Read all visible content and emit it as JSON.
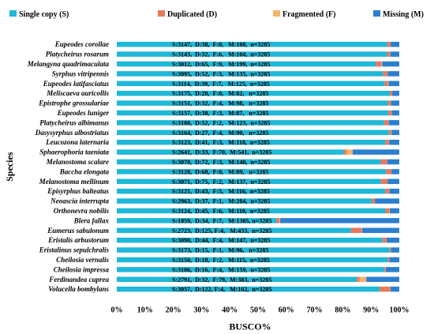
{
  "chart_data": {
    "type": "bar",
    "orientation": "horizontal",
    "stacked": true,
    "ylabel": "Species",
    "xlabel": "BUSCO%",
    "xlim": [
      0,
      100
    ],
    "x_ticks": [
      "0%",
      "10%",
      "20%",
      "30%",
      "40%",
      "50%",
      "60%",
      "70%",
      "80%",
      "90%",
      "100%"
    ],
    "legend_position": "top",
    "series": [
      {
        "name": "Single  copy (S)",
        "color": "#1fb8d8"
      },
      {
        "name": "Duplicated (D)",
        "color": "#e8795a"
      },
      {
        "name": "Fragmented (F)",
        "color": "#f6b26b"
      },
      {
        "name": "Missing (M)",
        "color": "#2a7fcf"
      }
    ],
    "categories": [
      "Eupeodes corollae",
      "Platycheirus rosarum",
      "Melangyna quadrimaculata",
      "Syrphus vitripennis",
      "Eupeodes latifasciatus",
      "Meliscaeva auricollis",
      "Epistrophe grossulariae",
      "Eupeodes luniger",
      "Platycheirus albimanus",
      "Dasysyrphus albostriatus",
      "Leucozona laternaria",
      "Sphaerophoria taeniata",
      "Melanostoma scalare",
      "Baccha elongata",
      "Melanostoma mellinum",
      "Episyrphus balteatus",
      "Neoascia interrupta",
      "Orthonevra nobilis",
      "Blera fallax",
      "Eumerus sabulonum",
      "Eristalis arbustorum",
      "Eristalinus sepulchralis",
      "Cheilosia vernalis",
      "Cheilosia impressa",
      "Ferdinandea cuprea",
      "Volucella bombylans"
    ],
    "rows": [
      {
        "S": 3147,
        "D": 38,
        "F": 0,
        "M": 100,
        "n": 3285,
        "label": "S:3147,  D:38,  F:0,   M:100,  n=3285"
      },
      {
        "S": 3143,
        "D": 32,
        "F": 6,
        "M": 104,
        "n": 3285,
        "label": "S:3143,  D:32,  F:6,   M:104,  n=3285"
      },
      {
        "S": 3012,
        "D": 65,
        "F": 9,
        "M": 199,
        "n": 3285,
        "label": "S:3012,  D:65,  F:9,   M:199,  n=3285"
      },
      {
        "S": 3095,
        "D": 52,
        "F": 3,
        "M": 135,
        "n": 3285,
        "label": "S:3095,  D:52,  F:3,   M:135,  n=3285"
      },
      {
        "S": 3114,
        "D": 39,
        "F": 7,
        "M": 125,
        "n": 3285,
        "label": "S:3114,  D:39,  F:7,   M:125,  n=3285"
      },
      {
        "S": 3175,
        "D": 28,
        "F": 0,
        "M": 82,
        "n": 3285,
        "label": "S:3175,  D:28,  F:0,   M:82,   n=3285"
      },
      {
        "S": 3151,
        "D": 32,
        "F": 4,
        "M": 98,
        "n": 3285,
        "label": "S:3151,  D:32,  F:4,   M:98,   n=3285"
      },
      {
        "S": 3157,
        "D": 38,
        "F": 3,
        "M": 87,
        "n": 3285,
        "label": "S:3157,  D:38,  F:3,   M:87,   n=3285"
      },
      {
        "S": 3108,
        "D": 52,
        "F": 2,
        "M": 123,
        "n": 3285,
        "label": "S:3108,  D:52,  F:2,   M:123,  n=3285"
      },
      {
        "S": 3164,
        "D": 27,
        "F": 4,
        "M": 90,
        "n": 3285,
        "label": "S:3164,  D:27,  F:4,   M:90,   n=3285"
      },
      {
        "S": 3123,
        "D": 41,
        "F": 3,
        "M": 118,
        "n": 3285,
        "label": "S:3123,  D:41,  F:3,   M:118,  n=3285"
      },
      {
        "S": 2641,
        "D": 33,
        "F": 70,
        "M": 541,
        "n": 3285,
        "label": "S:2641,  D:33,  F:70,  M:541,  n=3285"
      },
      {
        "S": 3070,
        "D": 72,
        "F": 3,
        "M": 140,
        "n": 3285,
        "label": "S:3070,  D:72,  F:3,   M:140,  n=3285"
      },
      {
        "S": 3128,
        "D": 68,
        "F": 0,
        "M": 89,
        "n": 3285,
        "label": "S:3128,  D:68,  F:0,   M:89,   n=3285"
      },
      {
        "S": 3071,
        "D": 75,
        "F": 2,
        "M": 137,
        "n": 3285,
        "label": "S:3071,  D:75,  F:2,   M:137,  n=3285"
      },
      {
        "S": 3121,
        "D": 43,
        "F": 5,
        "M": 116,
        "n": 3285,
        "label": "S:3121,  D:43,  F:5,   M:116,  n=3285"
      },
      {
        "S": 2963,
        "D": 37,
        "F": 1,
        "M": 284,
        "n": 3285,
        "label": "S:2963,  D:37,  F:1,   M:284,  n=3285"
      },
      {
        "S": 3124,
        "D": 45,
        "F": 6,
        "M": 110,
        "n": 3285,
        "label": "S:3124,  D:45,  F:6,   M:110,  n=3285"
      },
      {
        "S": 1859,
        "D": 34,
        "F": 7,
        "M": 1385,
        "n": 3285,
        "label": "S:1859,  D:34,  F:7,   M:1385, n=3285"
      },
      {
        "S": 2723,
        "D": 125,
        "F": 4,
        "M": 433,
        "n": 3285,
        "label": "S:2723,  D:125, F:4,   M:433,  n=3285"
      },
      {
        "S": 3090,
        "D": 44,
        "F": 4,
        "M": 147,
        "n": 3285,
        "label": "S:3090,  D:44,  F:4,   M:147,  n=3285"
      },
      {
        "S": 3173,
        "D": 15,
        "F": 1,
        "M": 96,
        "n": 3285,
        "label": "S:3173,  D:15,  F:1,   M:96,   n=3285"
      },
      {
        "S": 3150,
        "D": 18,
        "F": 2,
        "M": 115,
        "n": 3285,
        "label": "S:3150,  D:18,  F:2,   M:115,  n=3285"
      },
      {
        "S": 3106,
        "D": 16,
        "F": 4,
        "M": 159,
        "n": 3285,
        "label": "S:3106,  D:16,  F:4,   M:159,  n=3285"
      },
      {
        "S": 2791,
        "D": 32,
        "F": 79,
        "M": 383,
        "n": 3285,
        "label": "S:2791,  D:32,  F:79,  M:383,  n=3285"
      },
      {
        "S": 3057,
        "D": 122,
        "F": 4,
        "M": 102,
        "n": 3285,
        "label": "S:3057,  D:122, F:4,   M:102,  n=3285"
      }
    ]
  }
}
